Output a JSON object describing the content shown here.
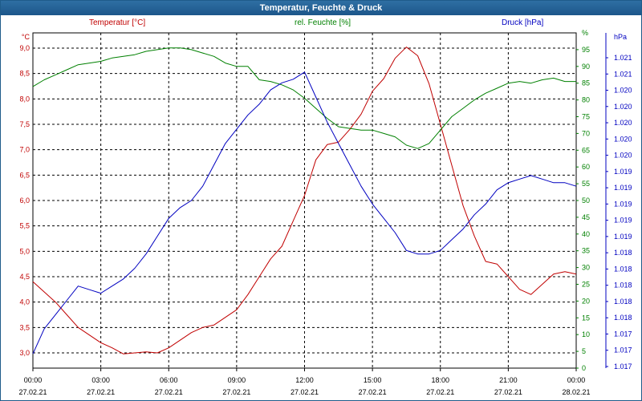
{
  "window": {
    "title": "Temperatur, Feuchte & Druck"
  },
  "colors": {
    "temperature": "#c00000",
    "humidity": "#008000",
    "pressure": "#0000c0",
    "titlebar": "#1f5c8a"
  },
  "chart_data": {
    "type": "line",
    "title": "Temperatur, Feuchte & Druck",
    "grid": true,
    "x_ticks": [
      {
        "time": "00:00",
        "date": "27.02.21"
      },
      {
        "time": "03:00",
        "date": "27.02.21"
      },
      {
        "time": "06:00",
        "date": "27.02.21"
      },
      {
        "time": "09:00",
        "date": "27.02.21"
      },
      {
        "time": "12:00",
        "date": "27.02.21"
      },
      {
        "time": "15:00",
        "date": "27.02.21"
      },
      {
        "time": "18:00",
        "date": "27.02.21"
      },
      {
        "time": "21:00",
        "date": "27.02.21"
      },
      {
        "time": "00:00",
        "date": "28.02.21"
      }
    ],
    "x_range_hours": [
      0,
      24
    ],
    "axes": {
      "left": {
        "label": "Temperatur [°C]",
        "unit": "°C",
        "range": [
          2.7,
          9.3
        ],
        "ticks": [
          "3,0",
          "3,5",
          "4,0",
          "4,5",
          "5,0",
          "5,5",
          "6,0",
          "6,5",
          "7,0",
          "7,5",
          "8,0",
          "8,5",
          "9,0"
        ]
      },
      "humidity": {
        "label": "rel. Feuchte [%]",
        "unit": "%",
        "range": [
          0,
          100
        ],
        "ticks": [
          "0",
          "5",
          "10",
          "15",
          "20",
          "25",
          "30",
          "35",
          "40",
          "45",
          "50",
          "55",
          "60",
          "65",
          "70",
          "75",
          "80",
          "85",
          "90",
          "95"
        ],
        "unit_tick": "%"
      },
      "pressure": {
        "label": "Druck [hPa]",
        "unit": "hPa",
        "range": [
          1016.9,
          1021.6
        ],
        "ticks": [
          "1.017",
          "1.017",
          "1.017",
          "1.018",
          "1.018",
          "1.018",
          "1.018",
          "1.018",
          "1.019",
          "1.019",
          "1.019",
          "1.019",
          "1.019",
          "1.020",
          "1.020",
          "1.020",
          "1.020",
          "1.020",
          "1.021",
          "1.021"
        ]
      }
    },
    "series": [
      {
        "name": "Temperatur [°C]",
        "axis": "left",
        "x": [
          0,
          0.5,
          1,
          1.5,
          2,
          2.5,
          3,
          3.5,
          4,
          4.5,
          5,
          5.5,
          6,
          6.5,
          7,
          7.5,
          8,
          8.5,
          9,
          9.5,
          10,
          10.5,
          11,
          11.5,
          12,
          12.5,
          13,
          13.5,
          14,
          14.5,
          15,
          15.5,
          16,
          16.5,
          17,
          17.5,
          18,
          18.5,
          19,
          19.5,
          20,
          20.5,
          21,
          21.5,
          22,
          22.5,
          23,
          23.5,
          24
        ],
        "values": [
          4.4,
          4.2,
          4.0,
          3.75,
          3.5,
          3.35,
          3.2,
          3.1,
          2.98,
          3.0,
          3.02,
          3.0,
          3.1,
          3.25,
          3.4,
          3.5,
          3.55,
          3.7,
          3.85,
          4.15,
          4.5,
          4.85,
          5.1,
          5.6,
          6.1,
          6.8,
          7.1,
          7.15,
          7.4,
          7.7,
          8.15,
          8.4,
          8.8,
          9.02,
          8.85,
          8.3,
          7.5,
          6.7,
          5.9,
          5.3,
          4.8,
          4.75,
          4.5,
          4.25,
          4.15,
          4.35,
          4.55,
          4.6,
          4.55
        ]
      },
      {
        "name": "rel. Feuchte [%]",
        "axis": "humidity",
        "x": [
          0,
          0.5,
          1,
          1.5,
          2,
          2.5,
          3,
          3.5,
          4,
          4.5,
          5,
          5.5,
          6,
          6.5,
          7,
          7.5,
          8,
          8.5,
          9,
          9.5,
          10,
          10.5,
          11,
          11.5,
          12,
          12.5,
          13,
          13.5,
          14,
          14.5,
          15,
          15.5,
          16,
          16.5,
          17,
          17.5,
          18,
          18.5,
          19,
          19.5,
          20,
          20.5,
          21,
          21.5,
          22,
          22.5,
          23,
          23.5,
          24
        ],
        "values": [
          84,
          86,
          87.5,
          89,
          90.5,
          91,
          91.5,
          92.5,
          93,
          93.5,
          94.5,
          95,
          95.5,
          95.5,
          95,
          94,
          93,
          91,
          90,
          90,
          86,
          85.5,
          84.5,
          83,
          80.5,
          77.5,
          74.5,
          72,
          71.5,
          71,
          71,
          70,
          69,
          66.5,
          65.5,
          67,
          71,
          75,
          77.5,
          80,
          82,
          83.5,
          85,
          85.5,
          85,
          86,
          86.5,
          85.5,
          85.5
        ]
      },
      {
        "name": "Druck [hPa]",
        "axis": "pressure",
        "x": [
          0,
          0.5,
          1,
          1.5,
          2,
          2.5,
          3,
          3.5,
          4,
          4.5,
          5,
          5.5,
          6,
          6.5,
          7,
          7.5,
          8,
          8.5,
          9,
          9.5,
          10,
          10.5,
          11,
          11.5,
          12,
          12.5,
          13,
          13.5,
          14,
          14.5,
          15,
          15.5,
          16,
          16.5,
          17,
          17.5,
          18,
          18.5,
          19,
          19.5,
          20,
          20.5,
          21,
          21.5,
          22,
          22.5,
          23,
          23.5,
          24
        ],
        "values": [
          1017.1,
          1017.45,
          1017.65,
          1017.85,
          1018.05,
          1018.0,
          1017.95,
          1018.05,
          1018.15,
          1018.3,
          1018.5,
          1018.75,
          1019.0,
          1019.15,
          1019.25,
          1019.45,
          1019.75,
          1020.05,
          1020.25,
          1020.45,
          1020.6,
          1020.8,
          1020.9,
          1020.95,
          1021.05,
          1020.7,
          1020.35,
          1020.05,
          1019.75,
          1019.45,
          1019.2,
          1019.0,
          1018.8,
          1018.55,
          1018.5,
          1018.5,
          1018.55,
          1018.7,
          1018.85,
          1019.05,
          1019.2,
          1019.4,
          1019.5,
          1019.55,
          1019.6,
          1019.55,
          1019.5,
          1019.5,
          1019.45
        ]
      }
    ]
  }
}
